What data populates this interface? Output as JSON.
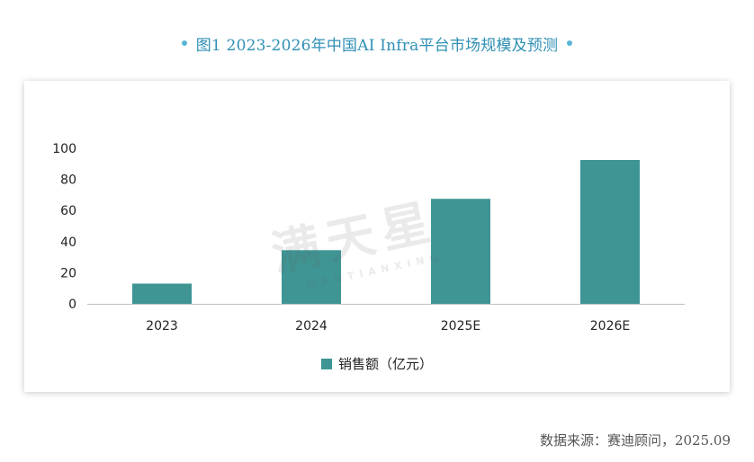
{
  "header": {
    "title": "图1 2023-2026年中国AI Infra平台市场规模及预测"
  },
  "watermark": {
    "text": "满天星",
    "subtext": "MANTIANXING"
  },
  "chart_data": {
    "type": "bar",
    "categories": [
      "2023",
      "2024",
      "2025E",
      "2026E"
    ],
    "series": [
      {
        "name": "销售额（亿元）",
        "values": [
          13,
          34.5,
          67.5,
          92.5
        ],
        "color": "#3e9594"
      }
    ],
    "title": "",
    "xlabel": "",
    "ylabel": "",
    "ylim": [
      0,
      100
    ],
    "yticks": [
      "0",
      "20",
      "40",
      "60",
      "80",
      "100"
    ],
    "grid": false,
    "legend_position": "bottom"
  },
  "footer": {
    "source": "数据来源：赛迪顾问，2025.09"
  }
}
